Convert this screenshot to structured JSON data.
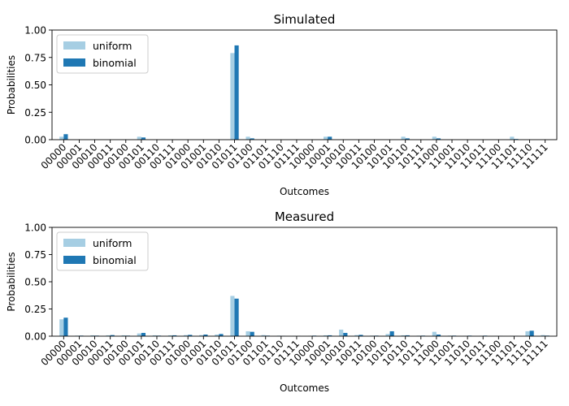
{
  "chart_data": [
    {
      "type": "bar",
      "title": "Simulated",
      "xlabel": "Outcomes",
      "ylabel": "Probabilities",
      "ylim": [
        0,
        1.0
      ],
      "yticks": [
        "0.00",
        "0.25",
        "0.50",
        "0.75",
        "1.00"
      ],
      "legend_position": "top-left",
      "categories": [
        "00000",
        "00001",
        "00010",
        "00011",
        "00100",
        "00101",
        "00110",
        "00111",
        "01000",
        "01001",
        "01010",
        "01011",
        "01100",
        "01101",
        "01110",
        "01111",
        "10000",
        "10001",
        "10010",
        "10011",
        "10100",
        "10101",
        "10110",
        "10111",
        "11000",
        "11001",
        "11010",
        "11011",
        "11100",
        "11101",
        "11110",
        "11111"
      ],
      "series": [
        {
          "name": "uniform",
          "color": "#a6cee3",
          "values": [
            0.027,
            0,
            0,
            0,
            0,
            0.027,
            0,
            0,
            0,
            0,
            0,
            0.79,
            0.027,
            0,
            0,
            0,
            0,
            0.027,
            0,
            0,
            0,
            0,
            0.027,
            0,
            0.027,
            0,
            0,
            0,
            0,
            0.027,
            0,
            0
          ]
        },
        {
          "name": "binomial",
          "color": "#1f78b4",
          "values": [
            0.05,
            0,
            0,
            0,
            0,
            0.02,
            0,
            0,
            0,
            0,
            0,
            0.86,
            0.012,
            0,
            0,
            0,
            0,
            0.027,
            0,
            0,
            0,
            0,
            0.012,
            0,
            0.012,
            0,
            0,
            0,
            0,
            0.006,
            0,
            0
          ]
        }
      ]
    },
    {
      "type": "bar",
      "title": "Measured",
      "xlabel": "Outcomes",
      "ylabel": "Probabilities",
      "ylim": [
        0,
        1.0
      ],
      "yticks": [
        "0.00",
        "0.25",
        "0.50",
        "0.75",
        "1.00"
      ],
      "legend_position": "top-left",
      "categories": [
        "00000",
        "00001",
        "00010",
        "00011",
        "00100",
        "00101",
        "00110",
        "00111",
        "01000",
        "01001",
        "01010",
        "01011",
        "01100",
        "01101",
        "01110",
        "01111",
        "10000",
        "10001",
        "10010",
        "10011",
        "10100",
        "10101",
        "10110",
        "10111",
        "11000",
        "11001",
        "11010",
        "11011",
        "11100",
        "11101",
        "11110",
        "11111"
      ],
      "series": [
        {
          "name": "uniform",
          "color": "#a6cee3",
          "values": [
            0.155,
            0.005,
            0.008,
            0.008,
            0.008,
            0.025,
            0.008,
            0.008,
            0.01,
            0.01,
            0.015,
            0.37,
            0.045,
            0.01,
            0.005,
            0.003,
            0.003,
            0.008,
            0.06,
            0.01,
            0.005,
            0.02,
            0.008,
            0.005,
            0.04,
            0.005,
            0.003,
            0.003,
            0.003,
            0.003,
            0.045,
            0.01
          ]
        },
        {
          "name": "binomial",
          "color": "#1f78b4",
          "values": [
            0.17,
            0.005,
            0.005,
            0.01,
            0.005,
            0.03,
            0.005,
            0.008,
            0.012,
            0.015,
            0.02,
            0.345,
            0.04,
            0.005,
            0.003,
            0.002,
            0.005,
            0.008,
            0.03,
            0.012,
            0.005,
            0.045,
            0.008,
            0.005,
            0.015,
            0.005,
            0.005,
            0.005,
            0.002,
            0.002,
            0.05,
            0.005
          ]
        }
      ]
    }
  ]
}
